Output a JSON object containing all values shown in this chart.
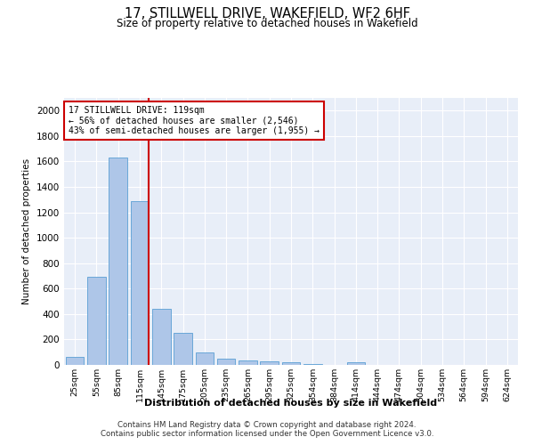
{
  "title1": "17, STILLWELL DRIVE, WAKEFIELD, WF2 6HF",
  "title2": "Size of property relative to detached houses in Wakefield",
  "xlabel": "Distribution of detached houses by size in Wakefield",
  "ylabel": "Number of detached properties",
  "annotation_title": "17 STILLWELL DRIVE: 119sqm",
  "annotation_line1": "← 56% of detached houses are smaller (2,546)",
  "annotation_line2": "43% of semi-detached houses are larger (1,955) →",
  "marker_bin_index": 3,
  "categories": [
    "25sqm",
    "55sqm",
    "85sqm",
    "115sqm",
    "145sqm",
    "175sqm",
    "205sqm",
    "235sqm",
    "265sqm",
    "295sqm",
    "325sqm",
    "354sqm",
    "384sqm",
    "414sqm",
    "444sqm",
    "474sqm",
    "504sqm",
    "534sqm",
    "564sqm",
    "594sqm",
    "624sqm"
  ],
  "values": [
    65,
    690,
    1630,
    1285,
    440,
    255,
    95,
    50,
    35,
    25,
    20,
    10,
    0,
    20,
    0,
    0,
    0,
    0,
    0,
    0,
    0
  ],
  "bar_color": "#aec6e8",
  "bar_edge_color": "#5a9fd4",
  "marker_color": "#cc0000",
  "ylim": [
    0,
    2100
  ],
  "yticks": [
    0,
    200,
    400,
    600,
    800,
    1000,
    1200,
    1400,
    1600,
    1800,
    2000
  ],
  "background_color": "#e8eef8",
  "footer1": "Contains HM Land Registry data © Crown copyright and database right 2024.",
  "footer2": "Contains public sector information licensed under the Open Government Licence v3.0."
}
